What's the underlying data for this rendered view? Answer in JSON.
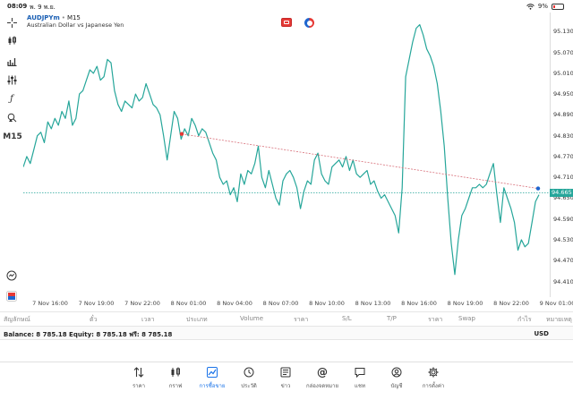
{
  "status_bar": {
    "time": "08:09",
    "date": "พ. 9 พ.ย.",
    "battery": "9%"
  },
  "symbol": {
    "code": "AUDJPYm",
    "timeframe": "M15",
    "description": "Australian Dollar vs Japanese Yen"
  },
  "left_toolbar": {
    "timeframe_label": "M15"
  },
  "chart_data": {
    "type": "line",
    "series_color": "#26a69a",
    "y_ticks": [
      "95.130",
      "95.070",
      "95.010",
      "94.950",
      "94.890",
      "94.830",
      "94.770",
      "94.710",
      "94.650",
      "94.590",
      "94.530",
      "94.470",
      "94.410"
    ],
    "ylim": [
      94.365,
      95.185
    ],
    "current_price": "94.665",
    "x_ticks": [
      "7 Nov 16:00",
      "7 Nov 19:00",
      "7 Nov 22:00",
      "8 Nov 01:00",
      "8 Nov 04:00",
      "8 Nov 07:00",
      "8 Nov 10:00",
      "8 Nov 13:00",
      "8 Nov 16:00",
      "8 Nov 19:00",
      "8 Nov 22:00",
      "9 Nov 01:00"
    ],
    "values": [
      94.74,
      94.77,
      94.75,
      94.79,
      94.83,
      94.84,
      94.81,
      94.87,
      94.85,
      94.88,
      94.86,
      94.9,
      94.88,
      94.93,
      94.86,
      94.88,
      94.95,
      94.96,
      94.99,
      95.02,
      95.01,
      95.03,
      94.99,
      95.0,
      95.05,
      95.04,
      94.96,
      94.92,
      94.9,
      94.93,
      94.92,
      94.91,
      94.95,
      94.93,
      94.94,
      94.98,
      94.95,
      94.92,
      94.91,
      94.89,
      94.83,
      94.76,
      94.83,
      94.9,
      94.88,
      94.82,
      94.85,
      94.83,
      94.88,
      94.86,
      94.83,
      94.85,
      94.84,
      94.81,
      94.78,
      94.76,
      94.71,
      94.69,
      94.7,
      94.66,
      94.68,
      94.64,
      94.72,
      94.69,
      94.73,
      94.72,
      94.75,
      94.8,
      94.71,
      94.68,
      94.73,
      94.69,
      94.65,
      94.63,
      94.7,
      94.72,
      94.73,
      94.71,
      94.68,
      94.62,
      94.67,
      94.7,
      94.69,
      94.76,
      94.78,
      94.72,
      94.7,
      94.69,
      94.74,
      94.75,
      94.76,
      94.74,
      94.77,
      94.73,
      94.76,
      94.72,
      94.71,
      94.72,
      94.73,
      94.69,
      94.7,
      94.67,
      94.65,
      94.66,
      94.64,
      94.62,
      94.6,
      94.55,
      94.68,
      95.0,
      95.05,
      95.1,
      95.14,
      95.15,
      95.12,
      95.08,
      95.06,
      95.03,
      94.98,
      94.9,
      94.8,
      94.65,
      94.52,
      94.43,
      94.53,
      94.6,
      94.62,
      94.65,
      94.68,
      94.68,
      94.69,
      94.68,
      94.69,
      94.72,
      94.75,
      94.66,
      94.58,
      94.68,
      94.65,
      94.62,
      94.58,
      94.5,
      94.53,
      94.51,
      94.52,
      94.58,
      94.64,
      94.66
    ],
    "trendline": {
      "start_price": 94.835,
      "end_price": 94.678,
      "start_color": "#e53935",
      "end_color": "#1e66d0"
    }
  },
  "x_axis_labels": [
    "7 Nov 16:00",
    "7 Nov 19:00",
    "7 Nov 22:00",
    "8 Nov 01:00",
    "8 Nov 04:00",
    "8 Nov 07:00",
    "8 Nov 10:00",
    "8 Nov 13:00",
    "8 Nov 16:00",
    "8 Nov 19:00",
    "8 Nov 22:00",
    "9 Nov 01:00"
  ],
  "table_headers": [
    "สัญลักษณ์",
    "ตั๋ว",
    "เวลา",
    "ประเภท",
    "Volume",
    "ราคา",
    "S/L",
    "T/P",
    "ราคา",
    "Swap",
    "กำไร",
    "หมายเหตุ"
  ],
  "balance": {
    "text": "Balance: 8 785.18 Equity: 8 785.18 ฟรี: 8 785.18",
    "currency": "USD"
  },
  "tabs": [
    {
      "label": "ราคา",
      "icon": "arrows-updown-icon"
    },
    {
      "label": "กราฟ",
      "icon": "candles-icon"
    },
    {
      "label": "การซื้อขาย",
      "icon": "trade-chart-icon"
    },
    {
      "label": "ประวัติ",
      "icon": "history-icon"
    },
    {
      "label": "ข่าว",
      "icon": "news-icon"
    },
    {
      "label": "กล่องจดหมาย",
      "icon": "mailbox-icon"
    },
    {
      "label": "แชท",
      "icon": "chat-icon"
    },
    {
      "label": "บัญชี",
      "icon": "account-icon"
    },
    {
      "label": "การตั้งค่า",
      "icon": "settings-icon"
    }
  ],
  "colors": {
    "accent": "#1a73e8",
    "line": "#26a69a",
    "buy_blue": "#1e66d0",
    "sell_red": "#e53935"
  }
}
